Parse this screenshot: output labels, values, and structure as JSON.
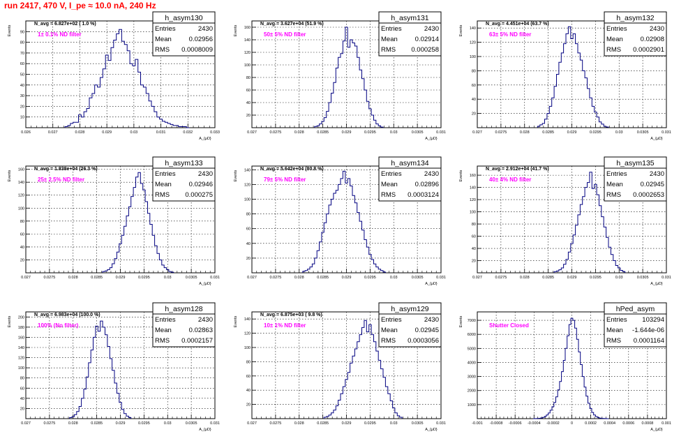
{
  "run_title": "run 2417,   470 V, I_pe ≈ 10.0 nA, 240 Hz",
  "colors": {
    "title": "#ff0000",
    "annotation": "#ff00ff",
    "histogram": "#000080",
    "grid": "#000000"
  },
  "chart_data": [
    {
      "type": "bar",
      "name": "h_asym130",
      "entries": "2430",
      "mean": "0.02956",
      "rms": "0.0008009",
      "navg": "N_avg = 6.827e+02 ( 1.0 %)",
      "filter": "1± 0.1% ND filter",
      "ylabel": "Events",
      "xlabel": "A_{μD}",
      "xlim": [
        0.026,
        0.033
      ],
      "ylim": [
        0,
        100
      ],
      "xticks": [
        0.026,
        0.027,
        0.028,
        0.029,
        0.03,
        0.031,
        0.032,
        0.033
      ],
      "xtick_labels": [
        "0.026",
        "0.027",
        "0.028",
        "0.029",
        "0.03",
        "0.031",
        "0.032",
        "0.033"
      ],
      "yticks": [
        10,
        20,
        30,
        40,
        50,
        60,
        70,
        80,
        90
      ],
      "bins": [
        0.0275,
        0.0276,
        0.0277,
        0.0278,
        0.0279,
        0.028,
        0.0281,
        0.0282,
        0.0283,
        0.0284,
        0.0285,
        0.0286,
        0.0287,
        0.0288,
        0.0289,
        0.029,
        0.0291,
        0.0292,
        0.0293,
        0.0294,
        0.0295,
        0.0296,
        0.0297,
        0.0298,
        0.0299,
        0.03,
        0.0301,
        0.0302,
        0.0303,
        0.0304,
        0.0305,
        0.0306,
        0.0307,
        0.0308,
        0.0309,
        0.031,
        0.0311,
        0.0312,
        0.0313,
        0.0314,
        0.0315,
        0.0316,
        0.0317,
        0.0318,
        0.0319,
        0.032
      ],
      "counts": [
        1,
        2,
        4,
        5,
        5,
        12,
        10,
        15,
        18,
        28,
        32,
        40,
        38,
        47,
        55,
        68,
        63,
        75,
        82,
        88,
        92,
        81,
        78,
        72,
        60,
        58,
        64,
        52,
        40,
        38,
        32,
        25,
        20,
        15,
        10,
        8,
        6,
        5,
        4,
        3,
        2,
        2,
        1,
        1,
        1,
        0
      ]
    },
    {
      "type": "bar",
      "name": "h_asym131",
      "entries": "2430",
      "mean": "0.02914",
      "rms": "0.000258",
      "navg": "N_avg = 3.627e+04 (51.9 %)",
      "filter": "50± 5% ND filter",
      "ylabel": "Events",
      "xlabel": "A_{μD}",
      "xlim": [
        0.027,
        0.031
      ],
      "ylim": [
        0,
        170
      ],
      "xticks": [
        0.027,
        0.0275,
        0.028,
        0.0285,
        0.029,
        0.0295,
        0.03,
        0.0305,
        0.031
      ],
      "xtick_labels": [
        "0.027",
        "0.0275",
        "0.028",
        "0.0285",
        "0.029",
        "0.0295",
        "0.03",
        "0.0305",
        "0.031"
      ],
      "yticks": [
        20,
        40,
        60,
        80,
        100,
        120,
        140,
        160
      ],
      "bins": [
        0.02835,
        0.0284,
        0.02845,
        0.0285,
        0.02855,
        0.0286,
        0.02865,
        0.0287,
        0.02875,
        0.0288,
        0.02885,
        0.0289,
        0.02895,
        0.029,
        0.02905,
        0.0291,
        0.02915,
        0.0292,
        0.02925,
        0.0293,
        0.02935,
        0.0294,
        0.02945,
        0.0295,
        0.02955,
        0.0296,
        0.02965,
        0.0297,
        0.02975
      ],
      "counts": [
        2,
        3,
        6,
        10,
        16,
        26,
        40,
        55,
        72,
        95,
        112,
        118,
        138,
        160,
        128,
        140,
        135,
        130,
        112,
        92,
        78,
        60,
        42,
        30,
        20,
        12,
        6,
        3,
        1
      ]
    },
    {
      "type": "bar",
      "name": "h_asym132",
      "entries": "2430",
      "mean": "0.02908",
      "rms": "0.0002901",
      "navg": "N_avg = 4.451e+04 (63.7 %)",
      "filter": "63± 5% ND filter",
      "ylabel": "Events",
      "xlabel": "A_{μD}",
      "xlim": [
        0.027,
        0.031
      ],
      "ylim": [
        0,
        150
      ],
      "xticks": [
        0.027,
        0.0275,
        0.028,
        0.0285,
        0.029,
        0.0295,
        0.03,
        0.0305,
        0.031
      ],
      "xtick_labels": [
        "0.027",
        "0.0275",
        "0.028",
        "0.0285",
        "0.029",
        "0.0295",
        "0.03",
        "0.0305",
        "0.031"
      ],
      "yticks": [
        20,
        40,
        60,
        80,
        100,
        120,
        140
      ],
      "bins": [
        0.0283,
        0.02835,
        0.0284,
        0.02845,
        0.0285,
        0.02855,
        0.0286,
        0.02865,
        0.0287,
        0.02875,
        0.0288,
        0.02885,
        0.0289,
        0.02895,
        0.029,
        0.02905,
        0.0291,
        0.02915,
        0.0292,
        0.02925,
        0.0293,
        0.02935,
        0.0294,
        0.02945,
        0.0295,
        0.02955,
        0.0296,
        0.02965,
        0.0297,
        0.02975
      ],
      "counts": [
        2,
        4,
        6,
        12,
        20,
        30,
        42,
        58,
        75,
        92,
        105,
        118,
        132,
        142,
        125,
        132,
        118,
        105,
        95,
        80,
        70,
        55,
        42,
        30,
        22,
        15,
        8,
        5,
        2,
        1
      ]
    },
    {
      "type": "bar",
      "name": "h_asym133",
      "entries": "2430",
      "mean": "0.02946",
      "rms": "0.000275",
      "navg": "N_avg = 1.838e+04 (26.3 %)",
      "filter": "25± 2.5% ND filter",
      "ylabel": "Events",
      "xlabel": "A_{μD}",
      "xlim": [
        0.027,
        0.031
      ],
      "ylim": [
        0,
        165
      ],
      "xticks": [
        0.027,
        0.0275,
        0.028,
        0.0285,
        0.029,
        0.0295,
        0.03,
        0.0305,
        0.031
      ],
      "xtick_labels": [
        "0.027",
        "0.0275",
        "0.028",
        "0.0285",
        "0.029",
        "0.0295",
        "0.03",
        "0.0305",
        "0.031"
      ],
      "yticks": [
        20,
        40,
        60,
        80,
        100,
        120,
        140,
        160
      ],
      "bins": [
        0.02865,
        0.0287,
        0.02875,
        0.0288,
        0.02885,
        0.0289,
        0.02895,
        0.029,
        0.02905,
        0.0291,
        0.02915,
        0.0292,
        0.02925,
        0.0293,
        0.02935,
        0.0294,
        0.02945,
        0.0295,
        0.02955,
        0.0296,
        0.02965,
        0.0297,
        0.02975,
        0.0298,
        0.02985,
        0.0299,
        0.02995,
        0.03,
        0.03005,
        0.0301
      ],
      "counts": [
        2,
        3,
        5,
        8,
        14,
        22,
        32,
        45,
        58,
        72,
        88,
        102,
        118,
        132,
        148,
        155,
        138,
        128,
        110,
        92,
        75,
        58,
        42,
        30,
        20,
        12,
        8,
        5,
        2,
        1
      ]
    },
    {
      "type": "bar",
      "name": "h_asym134",
      "entries": "2430",
      "mean": "0.02896",
      "rms": "0.0003124",
      "navg": "N_avg = 5.642e+04 (80.8 %)",
      "filter": "79± 5% ND filter",
      "ylabel": "Events",
      "xlabel": "A_{μD}",
      "xlim": [
        0.027,
        0.031
      ],
      "ylim": [
        0,
        145
      ],
      "xticks": [
        0.027,
        0.0275,
        0.028,
        0.0285,
        0.029,
        0.0295,
        0.03,
        0.0305,
        0.031
      ],
      "xtick_labels": [
        "0.027",
        "0.0275",
        "0.028",
        "0.0285",
        "0.029",
        "0.0295",
        "0.03",
        "0.0305",
        "0.031"
      ],
      "yticks": [
        20,
        40,
        60,
        80,
        100,
        120,
        140
      ],
      "bins": [
        0.0281,
        0.02815,
        0.0282,
        0.02825,
        0.0283,
        0.02835,
        0.0284,
        0.02845,
        0.0285,
        0.02855,
        0.0286,
        0.02865,
        0.0287,
        0.02875,
        0.0288,
        0.02885,
        0.0289,
        0.02895,
        0.029,
        0.02905,
        0.0291,
        0.02915,
        0.0292,
        0.02925,
        0.0293,
        0.02935,
        0.0294,
        0.02945,
        0.0295,
        0.02955,
        0.0296,
        0.02965,
        0.0297,
        0.02975,
        0.0298
      ],
      "counts": [
        2,
        3,
        5,
        8,
        12,
        20,
        30,
        42,
        55,
        68,
        80,
        92,
        100,
        108,
        112,
        120,
        128,
        138,
        122,
        128,
        118,
        105,
        95,
        82,
        70,
        58,
        45,
        35,
        25,
        18,
        12,
        8,
        5,
        3,
        1
      ]
    },
    {
      "type": "bar",
      "name": "h_asym135",
      "entries": "2430",
      "mean": "0.02945",
      "rms": "0.0002653",
      "navg": "N_avg = 2.912e+04 (41.7 %)",
      "filter": "40± 4% ND filter",
      "ylabel": "Events",
      "xlabel": "A_{μD}",
      "xlim": [
        0.027,
        0.031
      ],
      "ylim": [
        0,
        175
      ],
      "xticks": [
        0.027,
        0.0275,
        0.028,
        0.0285,
        0.029,
        0.0295,
        0.03,
        0.0305,
        0.031
      ],
      "xtick_labels": [
        "0.027",
        "0.0275",
        "0.028",
        "0.0285",
        "0.029",
        "0.0295",
        "0.03",
        "0.0305",
        "0.031"
      ],
      "yticks": [
        20,
        40,
        60,
        80,
        100,
        120,
        140,
        160
      ],
      "bins": [
        0.02865,
        0.0287,
        0.02875,
        0.0288,
        0.02885,
        0.0289,
        0.02895,
        0.029,
        0.02905,
        0.0291,
        0.02915,
        0.0292,
        0.02925,
        0.0293,
        0.02935,
        0.0294,
        0.02945,
        0.0295,
        0.02955,
        0.0296,
        0.02965,
        0.0297,
        0.02975,
        0.0298,
        0.02985,
        0.0299,
        0.02995,
        0.03,
        0.03005,
        0.0301
      ],
      "counts": [
        2,
        3,
        5,
        8,
        14,
        22,
        34,
        48,
        62,
        78,
        95,
        112,
        125,
        140,
        148,
        165,
        138,
        145,
        128,
        110,
        92,
        75,
        58,
        42,
        30,
        20,
        12,
        8,
        4,
        2
      ]
    },
    {
      "type": "bar",
      "name": "h_asym128",
      "entries": "2430",
      "mean": "0.02863",
      "rms": "0.0002157",
      "navg": "N_avg = 6.983e+04 (100.0 %)",
      "filter": "100% (No filter)",
      "ylabel": "Events",
      "xlabel": "A_{μD}",
      "xlim": [
        0.027,
        0.031
      ],
      "ylim": [
        0,
        210
      ],
      "xticks": [
        0.027,
        0.0275,
        0.028,
        0.0285,
        0.029,
        0.0295,
        0.03,
        0.0305,
        0.031
      ],
      "xtick_labels": [
        "0.027",
        "0.0275",
        "0.028",
        "0.0285",
        "0.029",
        "0.0295",
        "0.03",
        "0.0305",
        "0.031"
      ],
      "yticks": [
        20,
        40,
        60,
        80,
        100,
        120,
        140,
        160,
        180,
        200
      ],
      "bins": [
        0.02795,
        0.028,
        0.02805,
        0.0281,
        0.02815,
        0.0282,
        0.02825,
        0.0283,
        0.02835,
        0.0284,
        0.02845,
        0.0285,
        0.02855,
        0.0286,
        0.02865,
        0.0287,
        0.02875,
        0.0288,
        0.02885,
        0.0289,
        0.02895,
        0.029,
        0.02905,
        0.0291,
        0.02915,
        0.0292
      ],
      "counts": [
        2,
        4,
        8,
        14,
        24,
        40,
        58,
        82,
        110,
        135,
        160,
        182,
        172,
        192,
        180,
        165,
        142,
        118,
        95,
        70,
        50,
        32,
        18,
        10,
        5,
        2
      ]
    },
    {
      "type": "bar",
      "name": "h_asym129",
      "entries": "2430",
      "mean": "0.02945",
      "rms": "0.0003056",
      "navg": "N_avg = 6.875e+03 ( 9.8 %)",
      "filter": "10± 1% ND filter",
      "ylabel": "Events",
      "xlabel": "A_{μD}",
      "xlim": [
        0.027,
        0.031
      ],
      "ylim": [
        0,
        150
      ],
      "xticks": [
        0.027,
        0.0275,
        0.028,
        0.0285,
        0.029,
        0.0295,
        0.03,
        0.0305,
        0.031
      ],
      "xtick_labels": [
        "0.027",
        "0.0275",
        "0.028",
        "0.0285",
        "0.029",
        "0.0295",
        "0.03",
        "0.0305",
        "0.031"
      ],
      "yticks": [
        20,
        40,
        60,
        80,
        100,
        120,
        140
      ],
      "bins": [
        0.02855,
        0.0286,
        0.02865,
        0.0287,
        0.02875,
        0.0288,
        0.02885,
        0.0289,
        0.02895,
        0.029,
        0.02905,
        0.0291,
        0.02915,
        0.0292,
        0.02925,
        0.0293,
        0.02935,
        0.0294,
        0.02945,
        0.0295,
        0.02955,
        0.0296,
        0.02965,
        0.0297,
        0.02975,
        0.0298,
        0.02985,
        0.0299,
        0.02995,
        0.03,
        0.03005,
        0.0301,
        0.03015
      ],
      "counts": [
        2,
        3,
        5,
        8,
        12,
        18,
        26,
        35,
        45,
        55,
        65,
        78,
        88,
        98,
        108,
        118,
        128,
        138,
        122,
        132,
        118,
        108,
        95,
        82,
        70,
        58,
        45,
        35,
        25,
        15,
        8,
        4,
        2
      ]
    },
    {
      "type": "bar",
      "name": "hPed_asym",
      "entries": "103294",
      "mean": "-1.644e-06",
      "rms": "0.0001164",
      "navg": "",
      "filter": "Shutter Closed",
      "ylabel": "Events",
      "xlabel": "A_{μD}",
      "xlim": [
        -0.001,
        0.001
      ],
      "ylim": [
        0,
        7600
      ],
      "xticks": [
        -0.001,
        -0.0008,
        -0.0006,
        -0.0004,
        -0.0002,
        0,
        0.0002,
        0.0004,
        0.0006,
        0.0008,
        0.001
      ],
      "xtick_labels": [
        "-0.001",
        "-0.0008",
        "-0.0006",
        "-0.0004",
        "-0.0002",
        "0",
        "0.0002",
        "0.0004",
        "0.0006",
        "0.0008",
        "0.001"
      ],
      "yticks": [
        1000,
        2000,
        3000,
        4000,
        5000,
        6000,
        7000
      ],
      "bins": [
        -0.0004,
        -0.00038,
        -0.00036,
        -0.00034,
        -0.00032,
        -0.0003,
        -0.00028,
        -0.00026,
        -0.00024,
        -0.00022,
        -0.0002,
        -0.00018,
        -0.00016,
        -0.00014,
        -0.00012,
        -0.0001,
        -8e-05,
        -6e-05,
        -4e-05,
        -2e-05,
        0,
        2e-05,
        4e-05,
        6e-05,
        8e-05,
        0.0001,
        0.00012,
        0.00014,
        0.00016,
        0.00018,
        0.0002,
        0.00022,
        0.00024,
        0.00026,
        0.00028,
        0.0003,
        0.00032,
        0.00034,
        0.00036,
        0.00038
      ],
      "counts": [
        2,
        5,
        12,
        25,
        50,
        90,
        160,
        260,
        400,
        600,
        850,
        1150,
        1550,
        2050,
        2650,
        3350,
        4150,
        5000,
        5900,
        6700,
        7150,
        7000,
        6450,
        5650,
        4750,
        3850,
        3000,
        2250,
        1600,
        1100,
        720,
        440,
        260,
        150,
        80,
        40,
        20,
        10,
        5,
        2
      ]
    }
  ]
}
